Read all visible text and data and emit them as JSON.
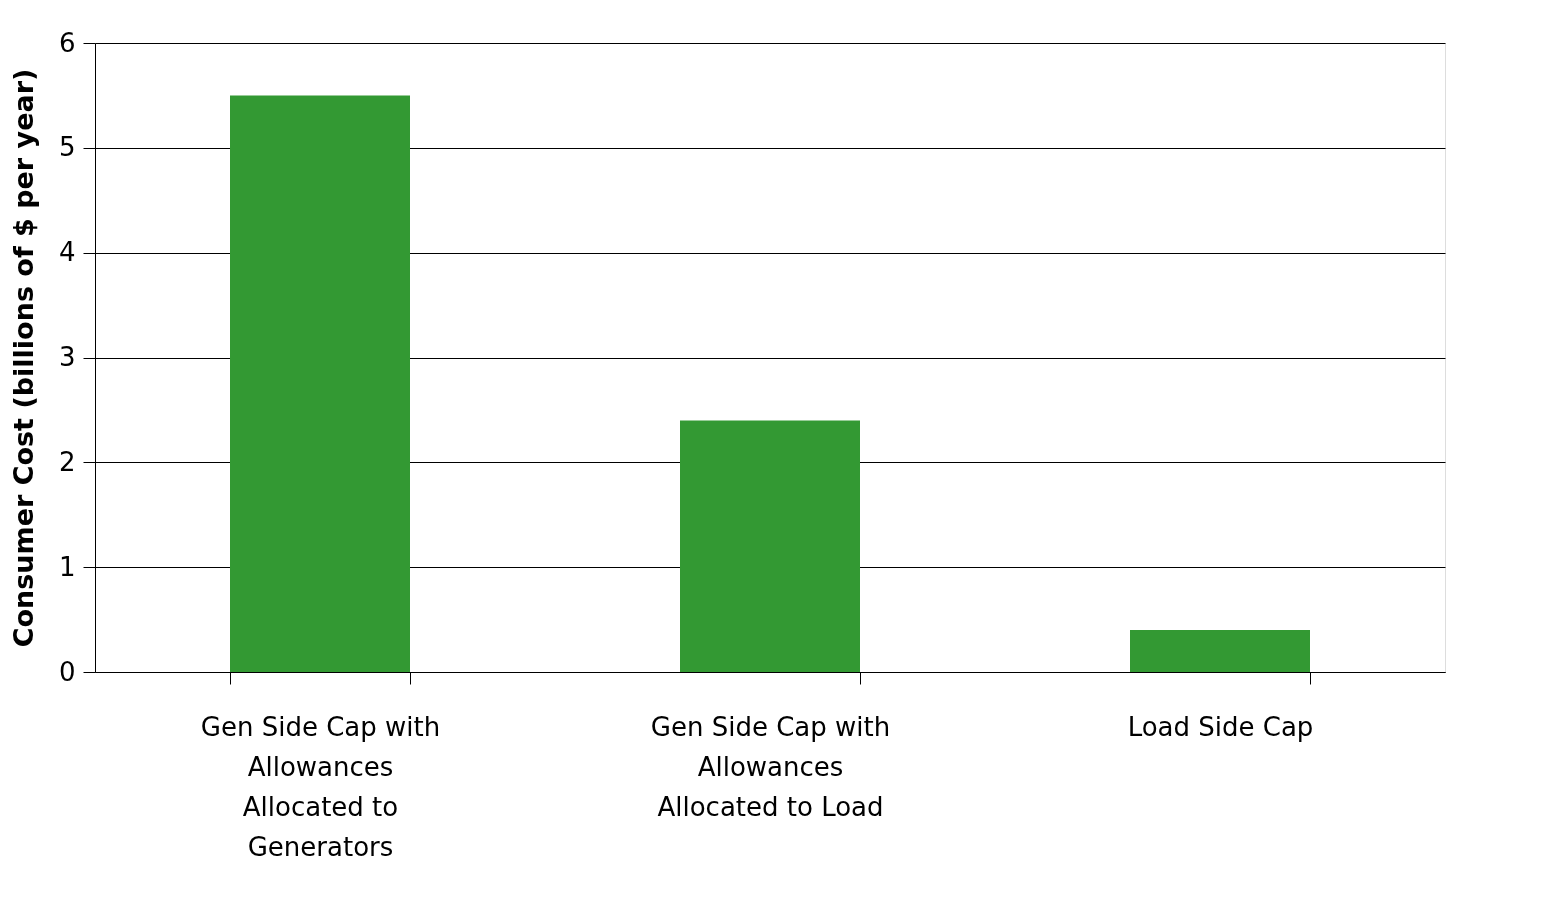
{
  "chart_data": {
    "type": "bar",
    "ylabel": "Consumer Cost (billions of $ per year)",
    "categories": [
      "Gen Side Cap with Allowances Allocated to Generators",
      "Gen Side Cap with Allowances Allocated to Load",
      "Load Side Cap"
    ],
    "values": [
      5.5,
      2.4,
      0.4
    ],
    "color": "#339933",
    "ylim": [
      0,
      6
    ],
    "yticks": [
      0,
      1,
      2,
      3,
      4,
      5,
      6
    ],
    "grid": "y"
  }
}
